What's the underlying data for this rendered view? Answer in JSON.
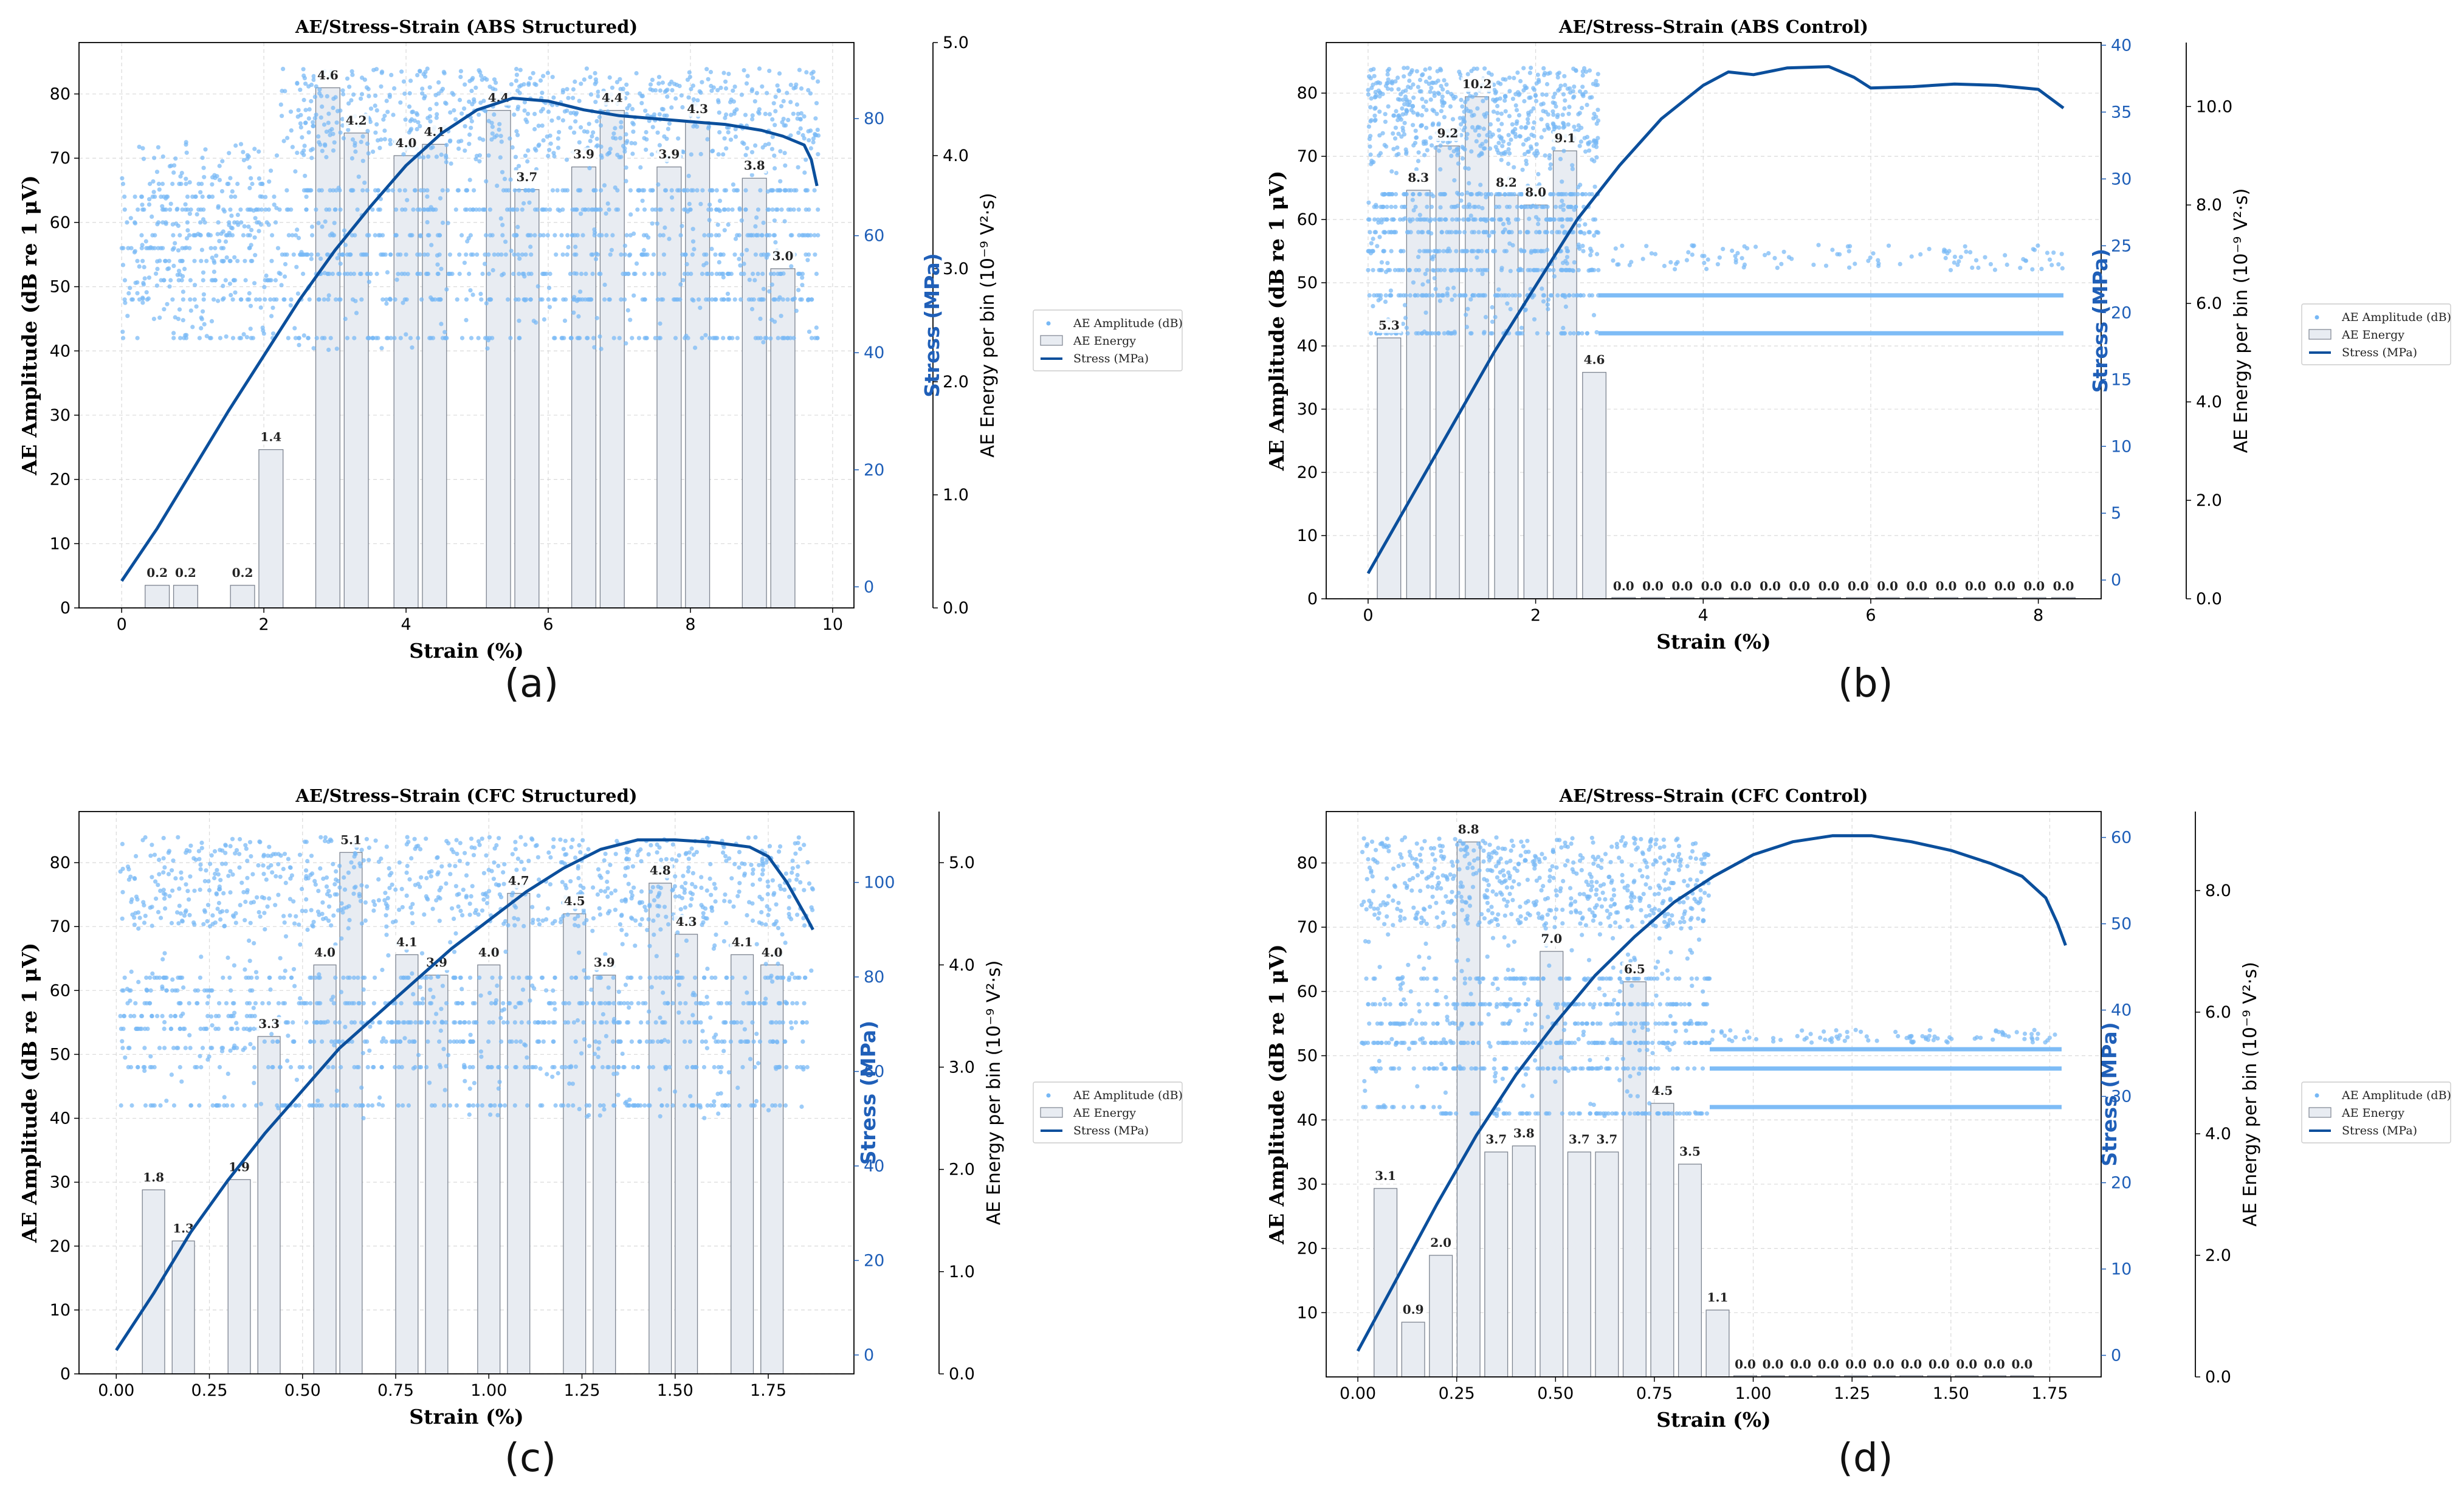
{
  "captions": [
    "(a)",
    "(b)",
    "(c)",
    "(d)"
  ],
  "legend": {
    "amplitude": "AE Amplitude (dB)",
    "energy": "AE Energy",
    "stress": "Stress (MPa)"
  },
  "colors": {
    "scatter": "#77b8f5",
    "stress": "#0b4f9c",
    "bar_fill": "#e8ecf2",
    "bar_edge": "#7d8490",
    "axis_blue": "#1f5fb8"
  },
  "chart_data": [
    {
      "type": "bar",
      "title": "AE/Stress–Strain (ABS Structured)",
      "xlabel": "Strain (%)",
      "ylabel": "AE Amplitude (dB re 1 μV)",
      "y2label": "Stress (MPa)",
      "y3label": "AE Energy per bin (10⁻⁹ V²·s)",
      "xlim": [
        -0.6,
        10.3
      ],
      "ylim": [
        0,
        88
      ],
      "y2lim": [
        -3.6,
        93
      ],
      "y3lim": [
        0,
        5.0
      ],
      "xticks": [
        0,
        2,
        4,
        6,
        8,
        10
      ],
      "yticks": [
        0,
        10,
        20,
        30,
        40,
        50,
        60,
        70,
        80
      ],
      "y2ticks": [
        0,
        20,
        40,
        60,
        80
      ],
      "y3ticks": [
        0,
        1,
        2,
        3,
        4,
        5
      ],
      "xtick_labels": [
        "0",
        "2",
        "4",
        "6",
        "8",
        "10"
      ],
      "ytick_labels": [
        "0",
        "10",
        "20",
        "30",
        "40",
        "50",
        "60",
        "70",
        "80"
      ],
      "y2tick_labels": [
        "0",
        "20",
        "40",
        "60",
        "80"
      ],
      "y3tick_labels": [
        "0.0",
        "1.0",
        "2.0",
        "3.0",
        "4.0",
        "5.0"
      ],
      "bar_width": 0.34,
      "energy_bars": {
        "x": [
          0.5,
          0.9,
          1.7,
          2.1,
          2.9,
          3.3,
          4.0,
          4.4,
          5.3,
          5.7,
          6.5,
          6.9,
          7.7,
          8.1,
          8.9,
          9.3
        ],
        "values": [
          0.2,
          0.2,
          0.2,
          1.4,
          4.6,
          4.2,
          4.0,
          4.1,
          4.4,
          3.7,
          3.9,
          4.4,
          3.9,
          4.3,
          3.8,
          3.0
        ],
        "labels": [
          "0.2",
          "0.2",
          "0.2",
          "1.4",
          "4.6",
          "4.2",
          "4.0",
          "4.1",
          "4.4",
          "3.7",
          "3.9",
          "4.4",
          "3.9",
          "4.3",
          "3.8",
          "3.0"
        ]
      },
      "stress": {
        "x": [
          0,
          0.5,
          1,
          1.5,
          2,
          2.5,
          3,
          3.5,
          4,
          4.5,
          5,
          5.5,
          6,
          6.5,
          7,
          7.5,
          8,
          8.5,
          9,
          9.3,
          9.6,
          9.7,
          9.78
        ],
        "y": [
          1,
          10,
          20,
          30,
          39.5,
          49,
          57.5,
          65,
          72,
          77.5,
          81.5,
          83.5,
          83,
          81.5,
          80.5,
          80,
          79.5,
          79,
          78,
          77,
          75.5,
          73,
          68.5
        ]
      },
      "amplitude_scatter": {
        "segments": [
          {
            "x": [
              0,
              2.2
            ],
            "n": 420,
            "lo": 42,
            "hi": 73,
            "levels": [
              42,
              48,
              51,
              54,
              56,
              58,
              60,
              62,
              64,
              66
            ]
          },
          {
            "x": [
              2.2,
              9.8
            ],
            "n": 1700,
            "lo": 40,
            "hi": 84,
            "levels": [
              42,
              48,
              52,
              55,
              58,
              62,
              65
            ]
          }
        ]
      }
    },
    {
      "type": "bar",
      "title": "AE/Stress–Strain (ABS Control)",
      "xlabel": "Strain (%)",
      "ylabel": "AE Amplitude (dB re 1 μV)",
      "y2label": "Stress (MPa)",
      "y3label": "AE Energy per bin (10⁻⁹ V²·s)",
      "xlim": [
        -0.5,
        8.75
      ],
      "ylim": [
        0,
        88
      ],
      "y2lim": [
        -1.4,
        40.2
      ],
      "y3lim": [
        0,
        11.3
      ],
      "xticks": [
        0,
        2,
        4,
        6,
        8
      ],
      "yticks": [
        0,
        10,
        20,
        30,
        40,
        50,
        60,
        70,
        80
      ],
      "y2ticks": [
        0,
        5,
        10,
        15,
        20,
        25,
        30,
        35,
        40
      ],
      "y3ticks": [
        0,
        2,
        4,
        6,
        8,
        10
      ],
      "xtick_labels": [
        "0",
        "2",
        "4",
        "6",
        "8"
      ],
      "ytick_labels": [
        "0",
        "10",
        "20",
        "30",
        "40",
        "50",
        "60",
        "70",
        "80"
      ],
      "y2tick_labels": [
        "0",
        "5",
        "10",
        "15",
        "20",
        "25",
        "30",
        "35",
        "40"
      ],
      "y3tick_labels": [
        "0.0",
        "2.0",
        "4.0",
        "6.0",
        "8.0",
        "10.0"
      ],
      "bar_width": 0.28,
      "energy_bars": {
        "x": [
          0.25,
          0.6,
          0.95,
          1.3,
          1.65,
          2.0,
          2.35,
          2.7,
          3.05,
          3.4,
          3.75,
          4.1,
          4.45,
          4.8,
          5.15,
          5.5,
          5.85,
          6.2,
          6.55,
          6.9,
          7.25,
          7.6,
          7.95,
          8.3
        ],
        "values": [
          5.3,
          8.3,
          9.2,
          10.2,
          8.2,
          8.0,
          9.1,
          4.6,
          0,
          0,
          0,
          0,
          0,
          0,
          0,
          0,
          0,
          0,
          0,
          0,
          0,
          0,
          0,
          0
        ],
        "labels": [
          "5.3",
          "8.3",
          "9.2",
          "10.2",
          "8.2",
          "8.0",
          "9.1",
          "4.6",
          "0.0",
          "0.0",
          "0.0",
          "0.0",
          "0.0",
          "0.0",
          "0.0",
          "0.0",
          "0.0",
          "0.0",
          "0.0",
          "0.0",
          "0.0",
          "0.0",
          "0.0",
          "0.0"
        ]
      },
      "stress": {
        "x": [
          0,
          0.5,
          1,
          1.5,
          2,
          2.5,
          3,
          3.5,
          4,
          4.3,
          4.6,
          5,
          5.5,
          5.8,
          6,
          6.5,
          7,
          7.5,
          8,
          8.3
        ],
        "y": [
          0.5,
          6,
          11.5,
          17,
          22,
          27,
          31,
          34.5,
          37,
          38,
          37.8,
          38.3,
          38.4,
          37.6,
          36.8,
          36.9,
          37.1,
          37,
          36.7,
          35.3
        ]
      },
      "amplitude_scatter": {
        "segments": [
          {
            "x": [
              0,
              2.75
            ],
            "n": 1300,
            "lo": 42,
            "hi": 84,
            "levels": [
              42,
              48,
              52,
              55,
              58,
              60,
              62,
              64
            ]
          },
          {
            "x": [
              2.75,
              8.3
            ],
            "n": 110,
            "lo": 52,
            "hi": 56,
            "levels": []
          }
        ],
        "bands": [
          {
            "x": [
              2.75,
              8.3
            ],
            "y": 42
          },
          {
            "x": [
              2.75,
              8.3
            ],
            "y": 48
          }
        ]
      }
    },
    {
      "type": "bar",
      "title": "AE/Stress–Strain (CFC Structured)",
      "xlabel": "Strain (%)",
      "ylabel": "AE Amplitude (dB re 1 μV)",
      "y2label": "Stress (MPa)",
      "y3label": "AE Energy per bin (10⁻⁹ V²·s)",
      "xlim": [
        -0.1,
        1.98
      ],
      "ylim": [
        0,
        88
      ],
      "y2lim": [
        -4,
        115
      ],
      "y3lim": [
        0,
        5.5
      ],
      "xticks": [
        0,
        0.25,
        0.5,
        0.75,
        1.0,
        1.25,
        1.5,
        1.75
      ],
      "yticks": [
        0,
        10,
        20,
        30,
        40,
        50,
        60,
        70,
        80
      ],
      "y2ticks": [
        0,
        20,
        40,
        60,
        80,
        100
      ],
      "y3ticks": [
        0,
        1,
        2,
        3,
        4,
        5
      ],
      "xtick_labels": [
        "0.00",
        "0.25",
        "0.50",
        "0.75",
        "1.00",
        "1.25",
        "1.50",
        "1.75"
      ],
      "ytick_labels": [
        "0",
        "10",
        "20",
        "30",
        "40",
        "50",
        "60",
        "70",
        "80"
      ],
      "y2tick_labels": [
        "0",
        "20",
        "40",
        "60",
        "80",
        "100"
      ],
      "y3tick_labels": [
        "0.0",
        "1.0",
        "2.0",
        "3.0",
        "4.0",
        "5.0"
      ],
      "bar_width": 0.06,
      "energy_bars": {
        "x": [
          0.1,
          0.18,
          0.33,
          0.41,
          0.56,
          0.63,
          0.78,
          0.86,
          1.0,
          1.08,
          1.23,
          1.31,
          1.46,
          1.53,
          1.68,
          1.76
        ],
        "values": [
          1.8,
          1.3,
          1.9,
          3.3,
          4.0,
          5.1,
          4.1,
          3.9,
          4.0,
          4.7,
          4.5,
          3.9,
          4.8,
          4.3,
          4.1,
          4.0
        ],
        "labels": [
          "1.8",
          "1.3",
          "1.9",
          "3.3",
          "4.0",
          "5.1",
          "4.1",
          "3.9",
          "4.0",
          "4.7",
          "4.5",
          "3.9",
          "4.8",
          "4.3",
          "4.1",
          "4.0"
        ]
      },
      "stress": {
        "x": [
          0,
          0.1,
          0.2,
          0.3,
          0.4,
          0.5,
          0.6,
          0.7,
          0.8,
          0.9,
          1.0,
          1.1,
          1.2,
          1.3,
          1.4,
          1.5,
          1.6,
          1.7,
          1.75,
          1.8,
          1.85,
          1.87
        ],
        "y": [
          1,
          13,
          26,
          37,
          47,
          56,
          65,
          72,
          79,
          86,
          92,
          98,
          103,
          107,
          109,
          109,
          108.5,
          107.5,
          105.5,
          100,
          93,
          90
        ]
      },
      "amplitude_scatter": {
        "segments": [
          {
            "x": [
              0.01,
              0.38
            ],
            "n": 400,
            "lo": 42,
            "hi": 84,
            "levels": [
              42,
              48,
              51,
              54,
              56,
              58,
              60,
              62
            ]
          },
          {
            "x": [
              0.38,
              1.87
            ],
            "n": 1500,
            "lo": 40,
            "hi": 84,
            "levels": [
              42,
              48,
              52,
              55,
              58,
              62
            ]
          }
        ]
      }
    },
    {
      "type": "bar",
      "title": "AE/Stress–Strain (CFC Control)",
      "xlabel": "Strain (%)",
      "ylabel": "AE Amplitude (dB re 1 μV)",
      "y2label": "Stress (MPa)",
      "y3label": "AE Energy per bin (10⁻⁹ V²·s)",
      "xlim": [
        -0.08,
        1.88
      ],
      "ylim": [
        0,
        88
      ],
      "y2lim": [
        -2.5,
        63
      ],
      "y3lim": [
        0,
        9.3
      ],
      "xticks": [
        0,
        0.25,
        0.5,
        0.75,
        1.0,
        1.25,
        1.5,
        1.75
      ],
      "yticks": [
        10,
        20,
        30,
        40,
        50,
        60,
        70,
        80
      ],
      "y2ticks": [
        0,
        10,
        20,
        30,
        40,
        50,
        60
      ],
      "y3ticks": [
        0,
        2,
        4,
        6,
        8
      ],
      "xtick_labels": [
        "0.00",
        "0.25",
        "0.50",
        "0.75",
        "1.00",
        "1.25",
        "1.50",
        "1.75"
      ],
      "ytick_labels": [
        "10",
        "20",
        "30",
        "40",
        "50",
        "60",
        "70",
        "80"
      ],
      "y2tick_labels": [
        "0",
        "10",
        "20",
        "30",
        "40",
        "50",
        "60"
      ],
      "y3tick_labels": [
        "0.0",
        "2.0",
        "4.0",
        "6.0",
        "8.0"
      ],
      "bar_width": 0.058,
      "energy_bars": {
        "x": [
          0.07,
          0.14,
          0.21,
          0.28,
          0.35,
          0.42,
          0.49,
          0.56,
          0.63,
          0.7,
          0.77,
          0.84,
          0.91,
          0.98,
          1.05,
          1.12,
          1.19,
          1.26,
          1.33,
          1.4,
          1.47,
          1.54,
          1.61,
          1.68
        ],
        "values": [
          3.1,
          0.9,
          2.0,
          8.8,
          3.7,
          3.8,
          7.0,
          3.7,
          3.7,
          6.5,
          4.5,
          3.5,
          1.1,
          0,
          0,
          0,
          0,
          0,
          0,
          0,
          0,
          0,
          0,
          0
        ],
        "labels": [
          "3.1",
          "0.9",
          "2.0",
          "8.8",
          "3.7",
          "3.8",
          "7.0",
          "3.7",
          "3.7",
          "6.5",
          "4.5",
          "3.5",
          "1.1",
          "0.0",
          "0.0",
          "0.0",
          "0.0",
          "0.0",
          "0.0",
          "0.0",
          "0.0",
          "0.0",
          "0.0",
          "0.0"
        ]
      },
      "stress": {
        "x": [
          0,
          0.1,
          0.2,
          0.3,
          0.4,
          0.5,
          0.6,
          0.7,
          0.8,
          0.9,
          1.0,
          1.1,
          1.2,
          1.3,
          1.4,
          1.5,
          1.6,
          1.68,
          1.74,
          1.77,
          1.79
        ],
        "y": [
          0.5,
          9,
          17.5,
          25.5,
          32.5,
          38.5,
          44,
          48.5,
          52.5,
          55.5,
          58,
          59.5,
          60.2,
          60.2,
          59.5,
          58.5,
          57,
          55.5,
          53,
          50,
          47.5
        ]
      },
      "amplitude_scatter": {
        "segments": [
          {
            "x": [
              0.01,
              0.21
            ],
            "n": 260,
            "lo": 42,
            "hi": 84,
            "levels": [
              42,
              48,
              52,
              55,
              58,
              62
            ]
          },
          {
            "x": [
              0.21,
              0.89
            ],
            "n": 1100,
            "lo": 40,
            "hi": 84,
            "levels": [
              41,
              48,
              52,
              55,
              58,
              62
            ]
          },
          {
            "x": [
              0.89,
              1.78
            ],
            "n": 90,
            "lo": 52,
            "hi": 54,
            "levels": []
          }
        ],
        "bands": [
          {
            "x": [
              0.89,
              1.78
            ],
            "y": 42
          },
          {
            "x": [
              0.89,
              1.78
            ],
            "y": 48
          },
          {
            "x": [
              0.89,
              1.78
            ],
            "y": 51
          }
        ]
      }
    }
  ]
}
